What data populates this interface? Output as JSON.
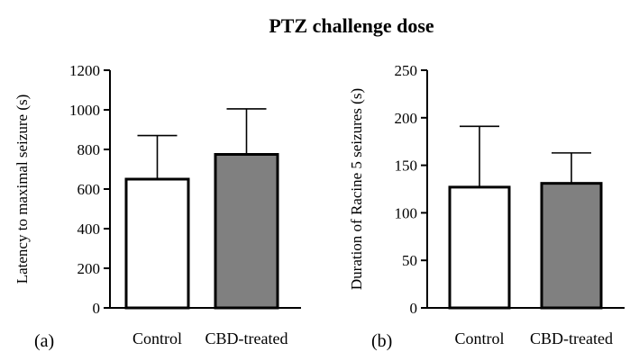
{
  "title": "PTZ challenge dose",
  "chart_data": [
    {
      "type": "bar",
      "panel_label": "(a)",
      "categories": [
        "Control",
        "CBD-treated"
      ],
      "values": [
        650,
        775
      ],
      "error_upper": [
        870,
        1005
      ],
      "ylabel": "Latency to maximal seizure (s)",
      "ylim": [
        0,
        1200
      ],
      "yticks": [
        0,
        200,
        400,
        600,
        800,
        1000,
        1200
      ],
      "colors": [
        "#ffffff",
        "#808080"
      ],
      "grid": false
    },
    {
      "type": "bar",
      "panel_label": "(b)",
      "categories": [
        "Control",
        "CBD-treated"
      ],
      "values": [
        127,
        131
      ],
      "error_upper": [
        191,
        163
      ],
      "ylabel": "Duration of Racine 5 seizures (s)",
      "ylim": [
        0,
        250
      ],
      "yticks": [
        0,
        50,
        100,
        150,
        200,
        250
      ],
      "colors": [
        "#ffffff",
        "#808080"
      ],
      "grid": false
    }
  ]
}
